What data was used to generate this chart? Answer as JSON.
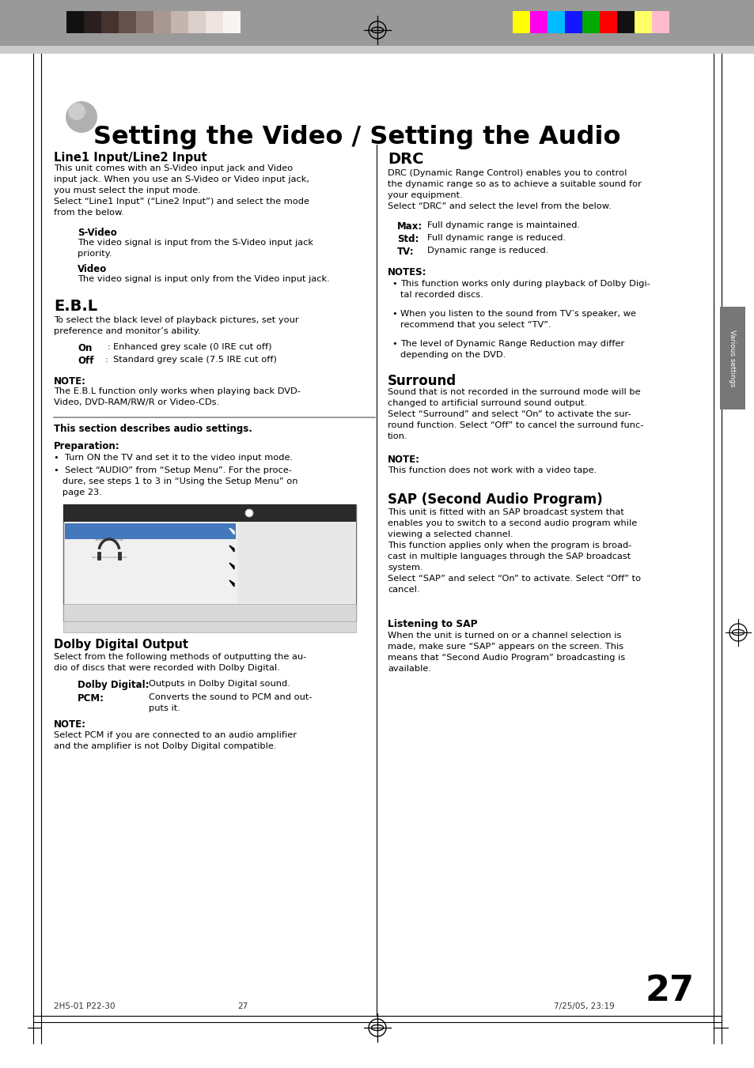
{
  "page_bg": "#ffffff",
  "color_bars_left": [
    "#111111",
    "#2a1e1e",
    "#44332e",
    "#635249",
    "#877770",
    "#a8988f",
    "#c5b5af",
    "#ddd0ca",
    "#eee5e0",
    "#f8f4f2"
  ],
  "color_bars_right": [
    "#ffff00",
    "#ff00ee",
    "#00bbff",
    "#1515ff",
    "#00aa00",
    "#ff0000",
    "#111111",
    "#ffff66",
    "#ffbbcc",
    "#999999"
  ],
  "title": "Setting the Video / Setting the Audio",
  "footer_left": "2H5-01 P22-30",
  "footer_center": "27",
  "footer_right": "7/25/05, 23:19",
  "page_number": "27"
}
